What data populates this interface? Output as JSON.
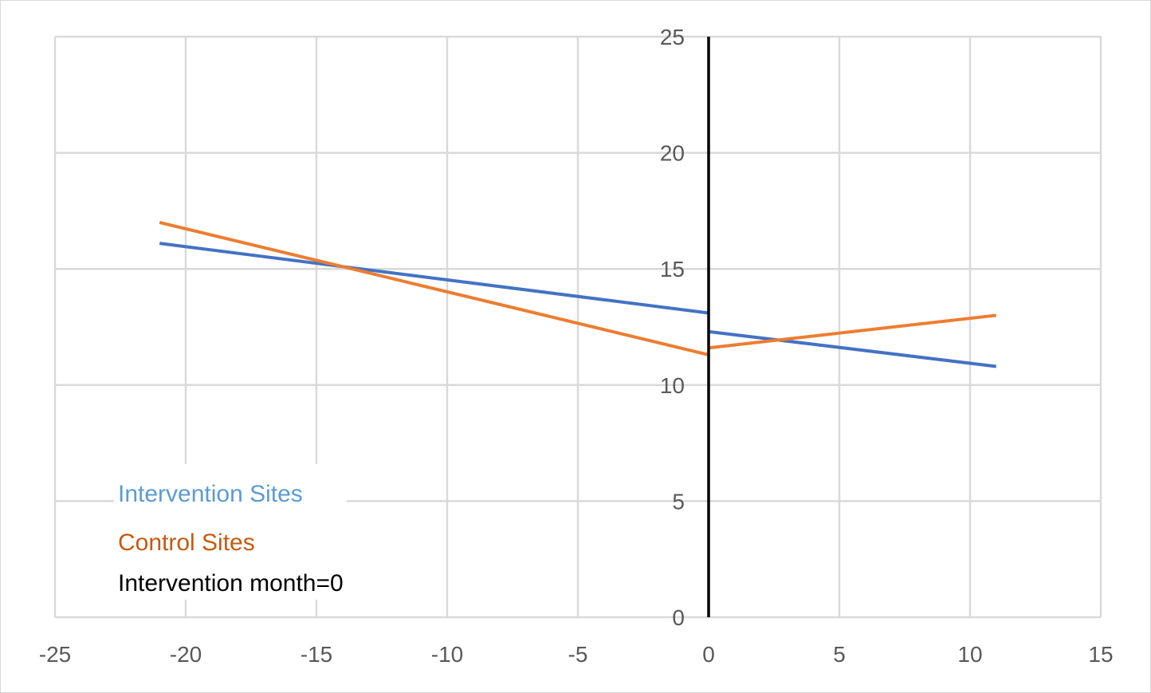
{
  "chart_data": {
    "type": "line",
    "title": "",
    "xlabel": "",
    "ylabel": "",
    "xlim": [
      -25,
      15
    ],
    "ylim": [
      0,
      25
    ],
    "x_ticks": [
      -25,
      -20,
      -15,
      -10,
      -5,
      0,
      5,
      10,
      15
    ],
    "y_ticks": [
      0,
      5,
      10,
      15,
      20,
      25
    ],
    "grid": true,
    "colors": {
      "intervention": "#4472c4",
      "control": "#ed7d31",
      "intervention_legend": "#5b9bd5",
      "control_legend": "#c55a11",
      "marker_line": "#000000",
      "grid": "#d9d9d9",
      "ticks": "#595959"
    },
    "series": [
      {
        "name": "Intervention Sites",
        "color": "#4472c4",
        "segments": [
          {
            "x": [
              -21,
              0
            ],
            "y": [
              16.1,
              13.1
            ]
          },
          {
            "x": [
              0,
              11
            ],
            "y": [
              12.3,
              10.8
            ]
          }
        ]
      },
      {
        "name": "Control Sites",
        "color": "#ed7d31",
        "segments": [
          {
            "x": [
              -21,
              0
            ],
            "y": [
              17.0,
              11.3
            ]
          },
          {
            "x": [
              0,
              11
            ],
            "y": [
              11.6,
              13.0
            ]
          }
        ]
      }
    ],
    "vertical_marker": {
      "x": 0,
      "label": "Intervention month=0",
      "color": "#000000"
    },
    "legend": {
      "placement": "bottom-left",
      "entries": [
        {
          "label": "Intervention Sites",
          "color": "#5b9bd5"
        },
        {
          "label": "Control Sites",
          "color": "#c55a11"
        },
        {
          "label": "Intervention month=0",
          "color": "#000000"
        }
      ]
    }
  }
}
